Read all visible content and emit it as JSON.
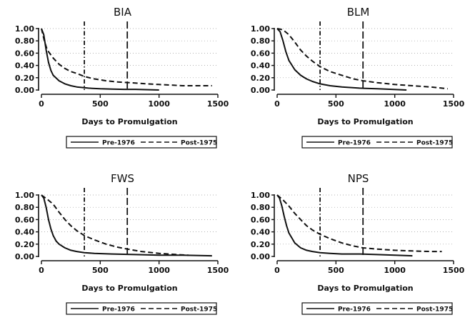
{
  "chart_data": [
    {
      "type": "line",
      "title": "BIA",
      "xlabel": "Days to Promulgation",
      "ylabel": "",
      "xlim": [
        0,
        1500
      ],
      "ylim": [
        0,
        1
      ],
      "x_ticks": [
        "0",
        "500",
        "1000",
        "1500"
      ],
      "y_ticks": [
        "0.00",
        "0.20",
        "0.40",
        "0.60",
        "0.80",
        "1.00"
      ],
      "grid": "horizontal dotted",
      "ref_lines": [
        {
          "x": 365,
          "style": "dash-dot"
        },
        {
          "x": 730,
          "style": "long-dash"
        }
      ],
      "legend": {
        "placement": "bottom",
        "entries": [
          "Pre-1976",
          "Post-1975"
        ]
      },
      "series": [
        {
          "name": "Pre-1976",
          "style": "solid",
          "x": [
            0,
            20,
            40,
            60,
            80,
            100,
            150,
            200,
            250,
            300,
            400,
            500,
            600,
            700,
            800,
            1000
          ],
          "y": [
            1.0,
            0.9,
            0.65,
            0.45,
            0.32,
            0.24,
            0.15,
            0.1,
            0.07,
            0.05,
            0.03,
            0.02,
            0.015,
            0.01,
            0.01,
            0.0
          ]
        },
        {
          "name": "Post-1975",
          "style": "dashed",
          "x": [
            0,
            25,
            50,
            100,
            150,
            200,
            250,
            300,
            365,
            450,
            550,
            650,
            750,
            900,
            1000,
            1100,
            1200,
            1300,
            1450
          ],
          "y": [
            1.0,
            0.8,
            0.65,
            0.52,
            0.42,
            0.35,
            0.3,
            0.27,
            0.22,
            0.18,
            0.15,
            0.13,
            0.12,
            0.1,
            0.09,
            0.08,
            0.07,
            0.07,
            0.07
          ]
        }
      ]
    },
    {
      "type": "line",
      "title": "BLM",
      "xlabel": "Days to Promulgation",
      "ylabel": "",
      "xlim": [
        0,
        1500
      ],
      "ylim": [
        0,
        1
      ],
      "x_ticks": [
        "0",
        "500",
        "1000",
        "1500"
      ],
      "y_ticks": [
        "0.00",
        "0.20",
        "0.40",
        "0.60",
        "0.80",
        "1.00"
      ],
      "grid": "horizontal dotted",
      "ref_lines": [
        {
          "x": 365,
          "style": "dash-dot"
        },
        {
          "x": 730,
          "style": "long-dash"
        }
      ],
      "legend": {
        "placement": "bottom",
        "entries": [
          "Pre-1976",
          "Post-1975"
        ]
      },
      "series": [
        {
          "name": "Pre-1976",
          "style": "solid",
          "x": [
            0,
            25,
            50,
            75,
            100,
            150,
            200,
            250,
            300,
            365,
            450,
            550,
            700,
            850,
            1100
          ],
          "y": [
            1.0,
            0.95,
            0.8,
            0.62,
            0.48,
            0.33,
            0.24,
            0.18,
            0.14,
            0.1,
            0.07,
            0.05,
            0.03,
            0.02,
            0.0
          ]
        },
        {
          "name": "Post-1975",
          "style": "dashed",
          "x": [
            0,
            50,
            100,
            150,
            200,
            250,
            300,
            365,
            450,
            550,
            650,
            730,
            850,
            1000,
            1150,
            1300,
            1400,
            1450
          ],
          "y": [
            1.0,
            0.98,
            0.9,
            0.78,
            0.65,
            0.55,
            0.47,
            0.38,
            0.3,
            0.24,
            0.18,
            0.15,
            0.12,
            0.09,
            0.07,
            0.05,
            0.03,
            0.02
          ]
        }
      ]
    },
    {
      "type": "line",
      "title": "FWS",
      "xlabel": "Days to Promulgation",
      "ylabel": "",
      "xlim": [
        0,
        1500
      ],
      "ylim": [
        0,
        1
      ],
      "x_ticks": [
        "0",
        "500",
        "1000",
        "1500"
      ],
      "y_ticks": [
        "0.00",
        "0.20",
        "0.40",
        "0.60",
        "0.80",
        "1.00"
      ],
      "grid": "horizontal dotted",
      "ref_lines": [
        {
          "x": 365,
          "style": "dash-dot"
        },
        {
          "x": 730,
          "style": "long-dash"
        }
      ],
      "legend": {
        "placement": "bottom",
        "entries": [
          "Pre-1976",
          "Post-1975"
        ]
      },
      "series": [
        {
          "name": "Pre-1976",
          "style": "solid",
          "x": [
            0,
            20,
            40,
            60,
            80,
            100,
            125,
            150,
            200,
            250,
            300,
            365,
            450,
            600,
            800,
            1000,
            1200,
            1450
          ],
          "y": [
            1.0,
            0.95,
            0.8,
            0.6,
            0.45,
            0.34,
            0.25,
            0.2,
            0.14,
            0.1,
            0.08,
            0.06,
            0.05,
            0.04,
            0.03,
            0.02,
            0.02,
            0.01
          ]
        },
        {
          "name": "Post-1975",
          "style": "dashed",
          "x": [
            0,
            50,
            100,
            150,
            200,
            250,
            300,
            365,
            450,
            550,
            650,
            730,
            850,
            1000,
            1150,
            1250
          ],
          "y": [
            1.0,
            0.93,
            0.85,
            0.72,
            0.6,
            0.5,
            0.42,
            0.34,
            0.27,
            0.2,
            0.15,
            0.12,
            0.08,
            0.05,
            0.03,
            0.02
          ]
        }
      ]
    },
    {
      "type": "line",
      "title": "NPS",
      "xlabel": "Days to Promulgation",
      "ylabel": "",
      "xlim": [
        0,
        1500
      ],
      "ylim": [
        0,
        1
      ],
      "x_ticks": [
        "0",
        "500",
        "1000",
        "1500"
      ],
      "y_ticks": [
        "0.00",
        "0.20",
        "0.40",
        "0.60",
        "0.80",
        "1.00"
      ],
      "grid": "horizontal dotted",
      "ref_lines": [
        {
          "x": 365,
          "style": "dash-dot"
        },
        {
          "x": 730,
          "style": "long-dash"
        }
      ],
      "legend": {
        "placement": "bottom",
        "entries": [
          "Pre-1976",
          "Post-1975"
        ]
      },
      "series": [
        {
          "name": "Pre-1976",
          "style": "solid",
          "x": [
            0,
            20,
            40,
            60,
            80,
            100,
            150,
            200,
            250,
            300,
            365,
            450,
            550,
            700,
            850,
            1000,
            1150
          ],
          "y": [
            1.0,
            0.95,
            0.82,
            0.65,
            0.5,
            0.38,
            0.22,
            0.14,
            0.1,
            0.08,
            0.06,
            0.05,
            0.04,
            0.04,
            0.03,
            0.02,
            0.01
          ]
        },
        {
          "name": "Post-1975",
          "style": "dashed",
          "x": [
            0,
            50,
            100,
            150,
            200,
            250,
            300,
            365,
            450,
            550,
            650,
            730,
            850,
            1000,
            1150,
            1300,
            1400
          ],
          "y": [
            1.0,
            0.92,
            0.82,
            0.7,
            0.6,
            0.5,
            0.43,
            0.36,
            0.29,
            0.22,
            0.17,
            0.14,
            0.12,
            0.1,
            0.09,
            0.08,
            0.08
          ]
        }
      ]
    }
  ]
}
